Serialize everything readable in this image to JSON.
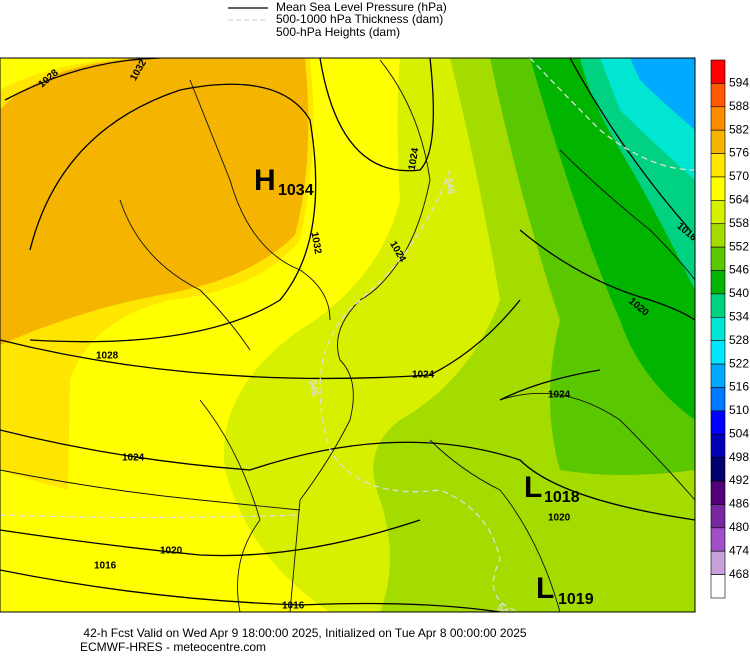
{
  "legend": {
    "items": [
      "Mean Sea Level Pressure (hPa)",
      "500-1000 hPa Thickness (dam)",
      "500-hPa Heights (dam)"
    ]
  },
  "colorbar": {
    "levels": [
      594,
      588,
      582,
      576,
      570,
      564,
      558,
      552,
      546,
      540,
      534,
      528,
      522,
      516,
      510,
      504,
      498,
      492,
      486,
      480,
      474,
      468
    ],
    "colors": [
      "#ff0000",
      "#ff5a00",
      "#ff8c00",
      "#f5b400",
      "#ffe600",
      "#ffff00",
      "#d7f000",
      "#a5dc00",
      "#5ac800",
      "#00b400",
      "#00d282",
      "#00e6d2",
      "#00e6ff",
      "#00aaff",
      "#0078ff",
      "#0000ff",
      "#0000b4",
      "#00006e",
      "#500078",
      "#7828a0",
      "#a050c8",
      "#c8a0dc",
      "#ffffff"
    ]
  },
  "map": {
    "isobar_labels": [
      "1028",
      "1032",
      "1024",
      "1032",
      "1024",
      "1028",
      "1024",
      "1024",
      "1020",
      "1016",
      "1016",
      "1020",
      "1024",
      "1016",
      "1020"
    ],
    "thickness_labels": [
      "546",
      "546",
      "546"
    ],
    "highs": [
      {
        "letter": "H",
        "value": "1034"
      }
    ],
    "lows": [
      {
        "letter": "L",
        "value": "1018"
      },
      {
        "letter": "L",
        "value": "1019"
      }
    ]
  },
  "footer": {
    "line1": "42-h Fcst Valid on Wed Apr  9 18:00:00 2025, Initialized on Tue Apr  8 00:00:00 2025",
    "line2": "ECMWF-HRES - meteocentre.com"
  }
}
